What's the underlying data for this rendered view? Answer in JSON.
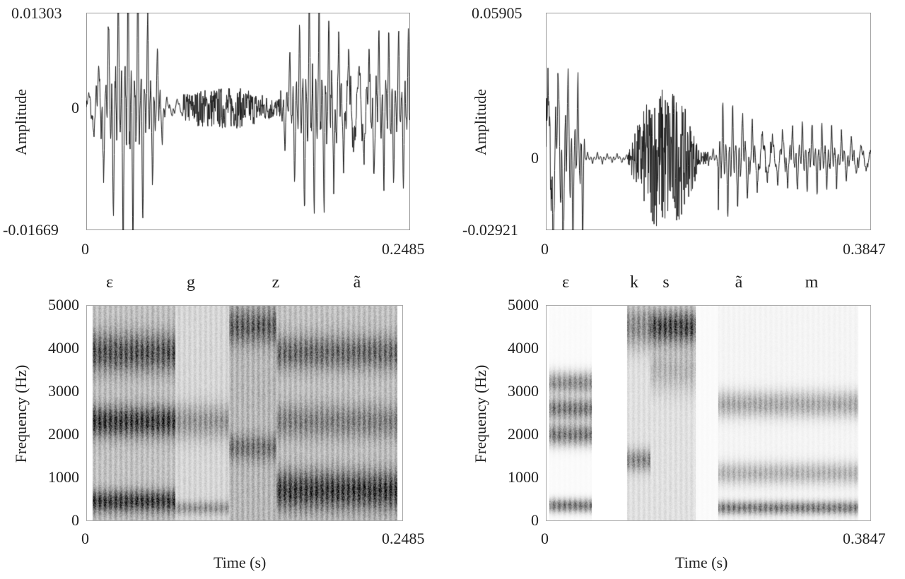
{
  "chart_data": [
    {
      "type": "line",
      "panel": "top-left waveform",
      "ylabel": "Amplitude",
      "ylim": [
        -0.01669,
        0.01303
      ],
      "xlim": [
        0,
        0.2485
      ],
      "y_ticks": [
        "0.01303",
        "0",
        "-0.01669"
      ],
      "x_ticks": [
        "0",
        "0.2485"
      ],
      "color": "#1a1a1a"
    },
    {
      "type": "line",
      "panel": "top-right waveform",
      "ylabel": "Amplitude",
      "ylim": [
        -0.02921,
        0.05905
      ],
      "xlim": [
        0,
        0.3847
      ],
      "y_ticks": [
        "0.05905",
        "0",
        "-0.02921"
      ],
      "x_ticks": [
        "0",
        "0.3847"
      ],
      "color": "#1a1a1a"
    },
    {
      "type": "heatmap",
      "panel": "bottom-left spectrogram",
      "xlabel": "Time (s)",
      "ylabel": "Frequency (Hz)",
      "ylim": [
        0,
        5000
      ],
      "xlim": [
        0,
        0.2485
      ],
      "y_ticks": [
        "5000",
        "4000",
        "3000",
        "2000",
        "1000",
        "0"
      ],
      "x_ticks": [
        "0",
        "0.2485"
      ],
      "segments": [
        "ε",
        "g",
        "z",
        "ã"
      ],
      "colormap": "grayscale"
    },
    {
      "type": "heatmap",
      "panel": "bottom-right spectrogram",
      "xlabel": "Time (s)",
      "ylabel": "Frequency (Hz)",
      "ylim": [
        0,
        5000
      ],
      "xlim": [
        0,
        0.3847
      ],
      "y_ticks": [
        "5000",
        "4000",
        "3000",
        "2000",
        "1000",
        "0"
      ],
      "x_ticks": [
        "0",
        "0.3847"
      ],
      "segments": [
        "ε",
        "k",
        "s",
        "ã",
        "m"
      ],
      "colormap": "grayscale"
    }
  ]
}
